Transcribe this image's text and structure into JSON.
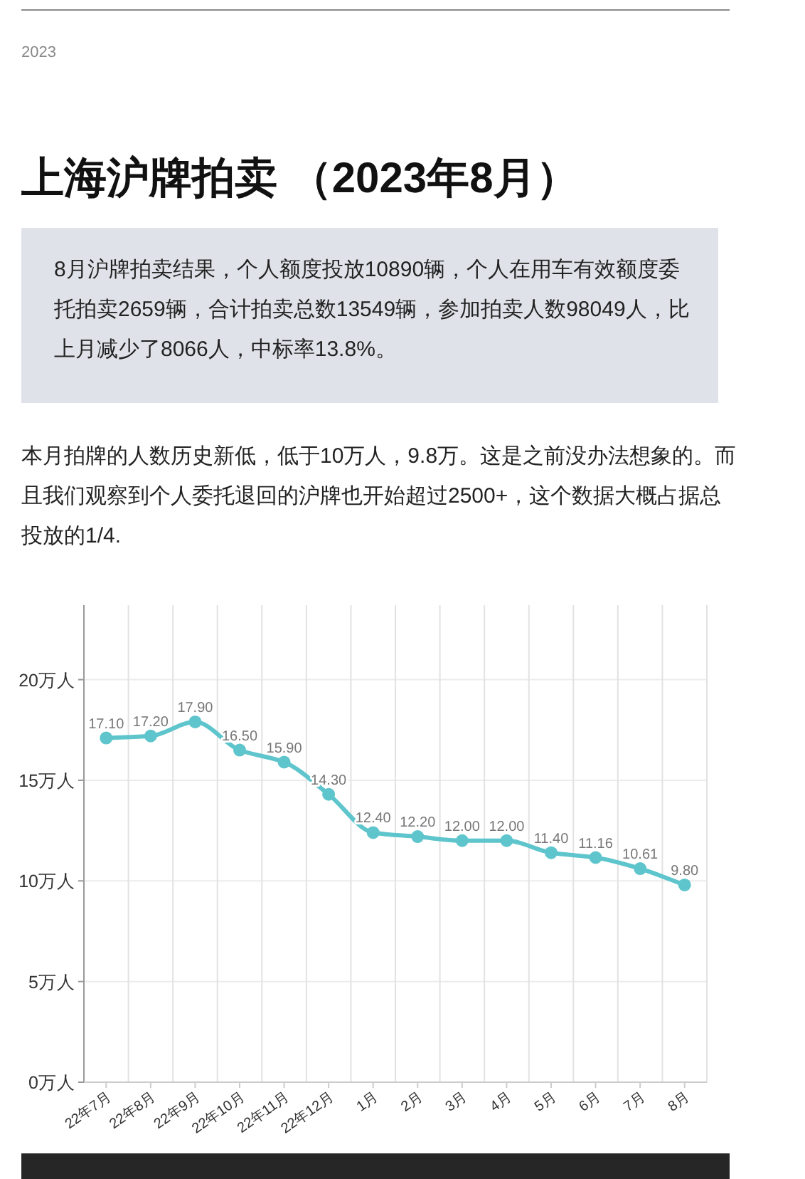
{
  "chart_data": {
    "type": "line",
    "title": "上海沪牌拍卖 （2023年8月）",
    "subtitle": "8月沪牌拍卖结果，个人额度投放10890辆，个人在用车有效额度委托拍卖2659辆，合计拍卖总数13549辆，参加拍卖人数98049人，比上月减少了8066人，中标率13.8%。",
    "annotations": [
      "2023",
      "本月拍牌的人数历史新低，低于10万人，9.8万。这是之前没办法想象的。而且我们观察到个人委托退回的沪牌也开始超过2500+，这个数据大概占据总投放的1/4."
    ],
    "categories": [
      "22年7月",
      "22年8月",
      "22年9月",
      "22年10月",
      "22年11月",
      "22年12月",
      "1月",
      "2月",
      "3月",
      "4月",
      "5月",
      "6月",
      "7月",
      "8月"
    ],
    "series": [
      {
        "color": "#5ec5cc",
        "values": [
          17.1,
          17.2,
          17.9,
          16.5,
          15.9,
          14.3,
          12.4,
          12.2,
          12.0,
          12.0,
          11.4,
          11.16,
          10.61,
          9.8
        ],
        "value_labels": [
          "17.10",
          "17.20",
          "17.90",
          "16.50",
          "15.90",
          "14.30",
          "12.40",
          "12.20",
          "12.00",
          "12.00",
          "11.40",
          "11.16",
          "10.61",
          "9.80"
        ]
      }
    ],
    "ylim": [
      0,
      23.7
    ],
    "yticks": [
      {
        "value": 0,
        "label": "0万人"
      },
      {
        "value": 5,
        "label": "5万人"
      },
      {
        "value": 10,
        "label": "10万人"
      },
      {
        "value": 15,
        "label": "15万人"
      },
      {
        "value": 20,
        "label": "20万人"
      }
    ],
    "grid": true,
    "marker": "circle",
    "line_style": "solid"
  }
}
